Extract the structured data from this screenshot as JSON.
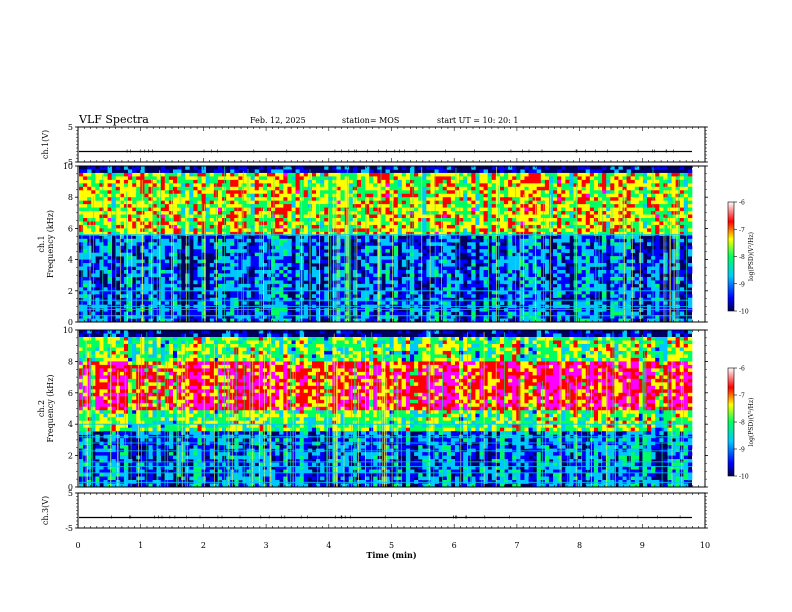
{
  "header": {
    "title": "VLF Spectra",
    "date": "Feb. 12, 2025",
    "station": "station= MOS",
    "start": "start  UT =   10: 20: 1"
  },
  "colors": {
    "background": "#000060",
    "trace": "#000000",
    "colormap": [
      "#000050",
      "#0000ff",
      "#00c8ff",
      "#00ff60",
      "#ffff00",
      "#ff0000",
      "#ff00ff"
    ]
  },
  "chart_data": [
    {
      "type": "line",
      "panel": "ch1-waveform",
      "ylabel": "ch.1(V)",
      "ylim": [
        -5,
        5
      ],
      "ytick_labels": [
        "5",
        "-5"
      ],
      "x": [
        0,
        10
      ],
      "values": [
        -2,
        -2
      ]
    },
    {
      "type": "heatmap",
      "panel": "ch1-spectrogram",
      "ylabel": "ch.1\nFrequency (kHz)",
      "ylim": [
        0,
        10
      ],
      "xlim": [
        0,
        10
      ],
      "ytick_labels": [
        "0",
        "2",
        "4",
        "6",
        "8",
        "10"
      ],
      "colorbar": {
        "label": "log(PSD)(V²/Hz)",
        "range": [
          -10,
          -6
        ],
        "tick_labels": [
          "-6",
          "-7",
          "-8",
          "-9",
          "-10"
        ]
      },
      "bands": [
        {
          "freq_khz": [
            5.5,
            9.5
          ],
          "level": 0.62
        },
        {
          "freq_khz": [
            0,
            5.5
          ],
          "level": 0.2
        }
      ],
      "lines_khz": [
        0.4,
        0.8,
        1.0,
        1.4,
        2.0,
        5.6
      ]
    },
    {
      "type": "heatmap",
      "panel": "ch2-spectrogram",
      "ylabel": "ch.2\nFrequency (kHz)",
      "ylim": [
        0,
        10
      ],
      "xlim": [
        0,
        10
      ],
      "ytick_labels": [
        "0",
        "2",
        "4",
        "6",
        "8",
        "10"
      ],
      "colorbar": {
        "label": "log(PSD)(V²/Hz)",
        "range": [
          -10,
          -6
        ],
        "tick_labels": [
          "-6",
          "-7",
          "-8",
          "-9",
          "-10"
        ]
      },
      "bands": [
        {
          "freq_khz": [
            5.0,
            8.0
          ],
          "level": 0.85
        },
        {
          "freq_khz": [
            3.5,
            9.5
          ],
          "level": 0.55
        },
        {
          "freq_khz": [
            0,
            3.5
          ],
          "level": 0.25
        }
      ],
      "lines_khz": [
        0.3,
        0.9,
        1.3,
        1.6,
        2.3,
        2.8,
        3.2,
        4.0
      ]
    },
    {
      "type": "line",
      "panel": "ch3-waveform",
      "ylabel": "ch.3(V)",
      "ylim": [
        -5,
        5
      ],
      "ytick_labels": [
        "5",
        "-5"
      ],
      "x": [
        0,
        10
      ],
      "values": [
        -2,
        -2
      ]
    }
  ],
  "xaxis": {
    "label": "Time (min)",
    "range": [
      0,
      10
    ],
    "tick_labels": [
      "0",
      "1",
      "2",
      "3",
      "4",
      "5",
      "6",
      "7",
      "8",
      "9",
      "10"
    ]
  }
}
